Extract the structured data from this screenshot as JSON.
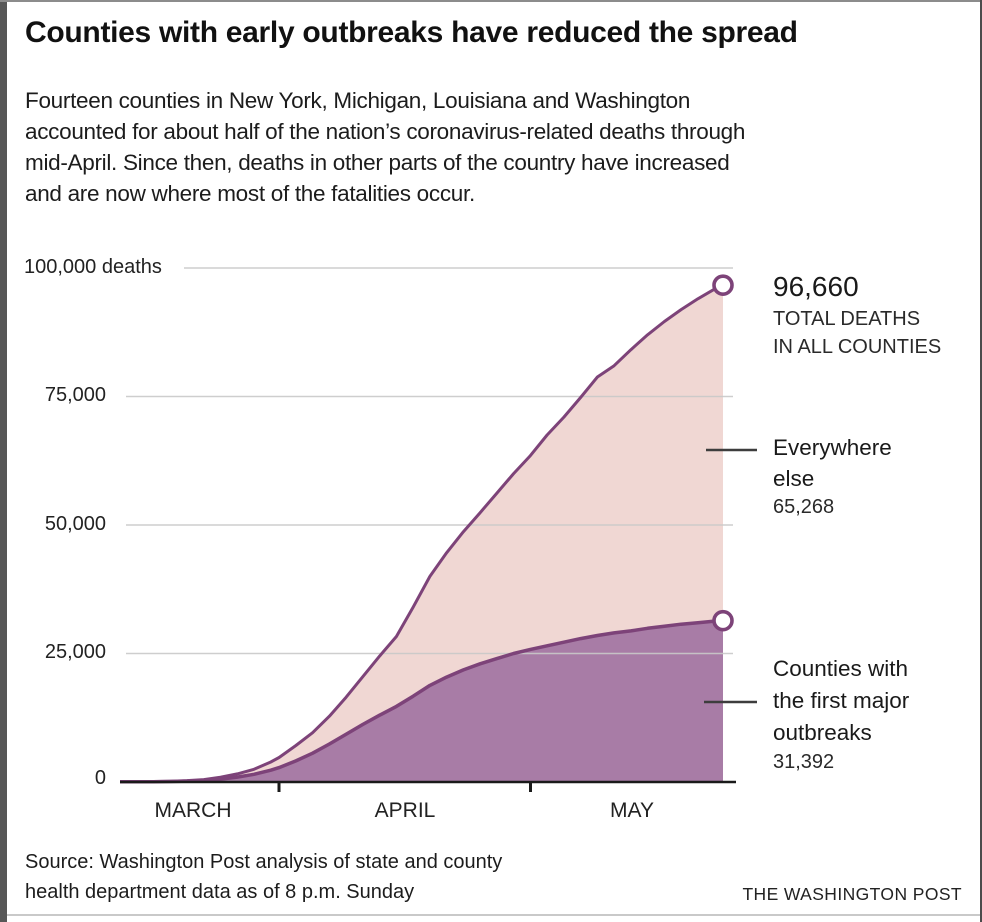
{
  "header": {
    "title": "Counties with early outbreaks have reduced the spread",
    "subtitle_lines": [
      "Fourteen counties in New York, Michigan, Louisiana and Washington",
      "accounted for about half of the nation’s coronavirus-related deaths through",
      "mid-April. Since then, deaths in other parts of the country have increased",
      "and are now where most of the fatalities occur."
    ]
  },
  "chart": {
    "y_axis": {
      "unit_label": "100,000 deaths",
      "tick_labels": [
        "75,000",
        "50,000",
        "25,000",
        "0"
      ]
    },
    "x_axis": {
      "months": [
        "MARCH",
        "APRIL",
        "MAY"
      ]
    },
    "annotations": {
      "total": {
        "value": "96,660",
        "line1": "TOTAL DEATHS",
        "line2": "IN ALL COUNTIES"
      },
      "everywhere": {
        "line1": "Everywhere",
        "line2": "else",
        "value": "65,268"
      },
      "outbreak": {
        "line1": "Counties with",
        "line2": "the first major",
        "line3": "outbreaks",
        "value": "31,392"
      }
    }
  },
  "footer": {
    "source_lines": [
      "Source: Washington Post analysis of state and county",
      "health department data as of 8 p.m. Sunday"
    ],
    "credit": "THE WASHINGTON POST"
  },
  "chart_data": {
    "type": "area",
    "title": "Counties with early outbreaks have reduced the spread",
    "ylabel": "deaths",
    "ylim": [
      0,
      100000
    ],
    "y_tick_values": [
      0,
      25000,
      50000,
      75000,
      100000
    ],
    "x_range": [
      "March 13",
      "May 24"
    ],
    "x_month_tick_days": [
      19,
      49
    ],
    "grid": true,
    "legend_position": "right-annotations",
    "series": [
      {
        "name": "Total deaths in all counties",
        "final_value": 96660,
        "values": [
          [
            0,
            50
          ],
          [
            2,
            63
          ],
          [
            4,
            90
          ],
          [
            6,
            150
          ],
          [
            8,
            268
          ],
          [
            10,
            471
          ],
          [
            12,
            940
          ],
          [
            14,
            1581
          ],
          [
            16,
            2467
          ],
          [
            18,
            3900
          ],
          [
            19,
            4760
          ],
          [
            21,
            7100
          ],
          [
            23,
            9600
          ],
          [
            25,
            12800
          ],
          [
            27,
            16500
          ],
          [
            29,
            20500
          ],
          [
            31,
            24500
          ],
          [
            33,
            28300
          ],
          [
            35,
            34000
          ],
          [
            37,
            40000
          ],
          [
            39,
            44600
          ],
          [
            41,
            48700
          ],
          [
            43,
            52400
          ],
          [
            45,
            56200
          ],
          [
            47,
            60000
          ],
          [
            49,
            63500
          ],
          [
            51,
            67500
          ],
          [
            53,
            71000
          ],
          [
            55,
            74800
          ],
          [
            57,
            78800
          ],
          [
            59,
            81000
          ],
          [
            61,
            84100
          ],
          [
            63,
            87000
          ],
          [
            65,
            89600
          ],
          [
            67,
            91900
          ],
          [
            69,
            94000
          ],
          [
            71,
            95900
          ],
          [
            72,
            96660
          ]
        ]
      },
      {
        "name": "Counties with the first major outbreaks",
        "final_value": 31392,
        "values": [
          [
            0,
            35
          ],
          [
            2,
            45
          ],
          [
            4,
            65
          ],
          [
            6,
            100
          ],
          [
            8,
            170
          ],
          [
            10,
            300
          ],
          [
            12,
            560
          ],
          [
            14,
            950
          ],
          [
            16,
            1500
          ],
          [
            18,
            2300
          ],
          [
            19,
            2800
          ],
          [
            21,
            4100
          ],
          [
            23,
            5600
          ],
          [
            25,
            7400
          ],
          [
            27,
            9300
          ],
          [
            29,
            11200
          ],
          [
            31,
            13000
          ],
          [
            33,
            14700
          ],
          [
            35,
            16700
          ],
          [
            37,
            18800
          ],
          [
            39,
            20400
          ],
          [
            41,
            21800
          ],
          [
            43,
            23000
          ],
          [
            45,
            24000
          ],
          [
            47,
            25000
          ],
          [
            49,
            25800
          ],
          [
            51,
            26500
          ],
          [
            53,
            27200
          ],
          [
            55,
            27900
          ],
          [
            57,
            28500
          ],
          [
            59,
            29000
          ],
          [
            61,
            29400
          ],
          [
            63,
            29900
          ],
          [
            65,
            30300
          ],
          [
            67,
            30700
          ],
          [
            69,
            31000
          ],
          [
            71,
            31300
          ],
          [
            72,
            31392
          ]
        ]
      }
    ],
    "derived": {
      "everywhere_else_final": 65268
    },
    "colors": {
      "everywhere_fill": "#f0d7d3",
      "outbreak_fill": "#a87ca6",
      "line": "#7d4379",
      "axis": "#1a1a1a",
      "gridline": "#c9c9c9",
      "leader": "#3d3d3d"
    }
  }
}
